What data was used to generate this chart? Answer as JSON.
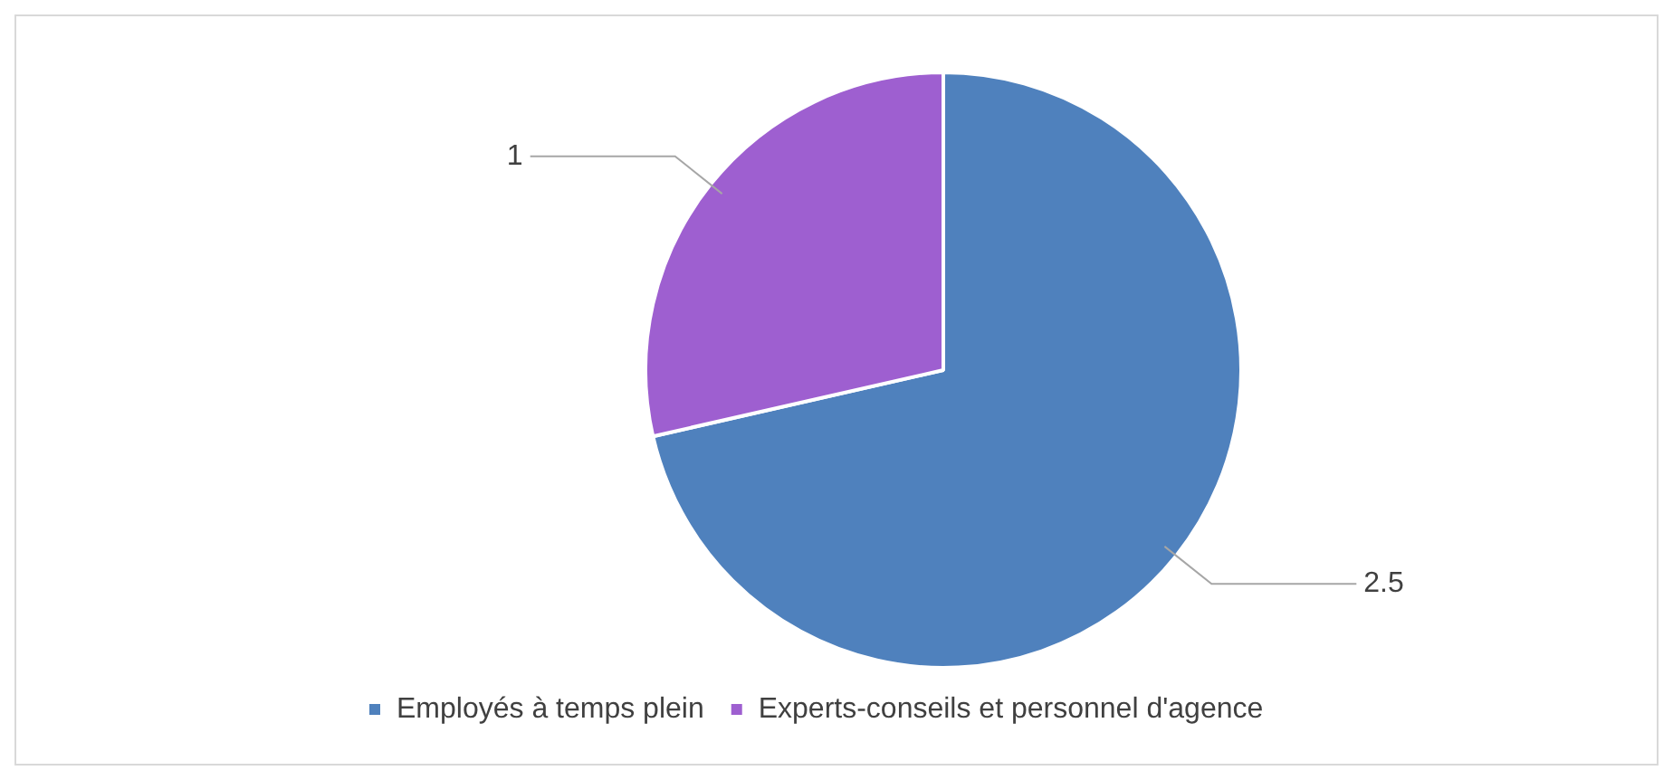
{
  "chart_data": {
    "type": "pie",
    "categories": [
      "Employés à temps plein",
      "Experts-conseils et personnel d'agence"
    ],
    "values": [
      2.5,
      1
    ],
    "colors": [
      "#4f81bd",
      "#9e5fd0"
    ],
    "data_labels": true,
    "legend": "bottom left"
  }
}
